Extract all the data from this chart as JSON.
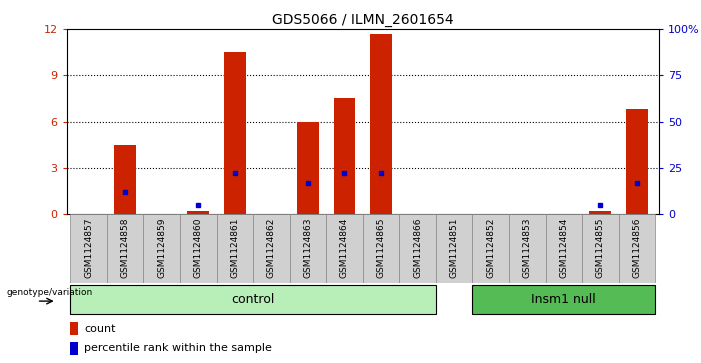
{
  "title": "GDS5066 / ILMN_2601654",
  "samples": [
    "GSM1124857",
    "GSM1124858",
    "GSM1124859",
    "GSM1124860",
    "GSM1124861",
    "GSM1124862",
    "GSM1124863",
    "GSM1124864",
    "GSM1124865",
    "GSM1124866",
    "GSM1124851",
    "GSM1124852",
    "GSM1124853",
    "GSM1124854",
    "GSM1124855",
    "GSM1124856"
  ],
  "counts": [
    0,
    4.5,
    0,
    0.2,
    10.5,
    0,
    6.0,
    7.5,
    11.7,
    0,
    0,
    0,
    0,
    0,
    0.2,
    6.8
  ],
  "percentile": [
    0,
    12,
    0,
    5,
    22,
    0,
    17,
    22,
    22,
    0,
    0,
    0,
    0,
    0,
    5,
    17
  ],
  "ylim_left": [
    0,
    12
  ],
  "ylim_right": [
    0,
    100
  ],
  "yticks_left": [
    0,
    3,
    6,
    9,
    12
  ],
  "yticks_right": [
    0,
    25,
    50,
    75,
    100
  ],
  "ytick_labels_right": [
    "0",
    "25",
    "50",
    "75",
    "100%"
  ],
  "bar_color": "#cc2200",
  "dot_color": "#0000cc",
  "control_label": "control",
  "insm1_label": "Insm1 null",
  "genotype_label": "genotype/variation",
  "legend_count": "count",
  "legend_percentile": "percentile rank within the sample",
  "sample_bg": "#d0d0d0",
  "control_bg": "#b8eeb8",
  "insm1_bg": "#55bb55",
  "n_control": 10,
  "n_insm1": 6
}
